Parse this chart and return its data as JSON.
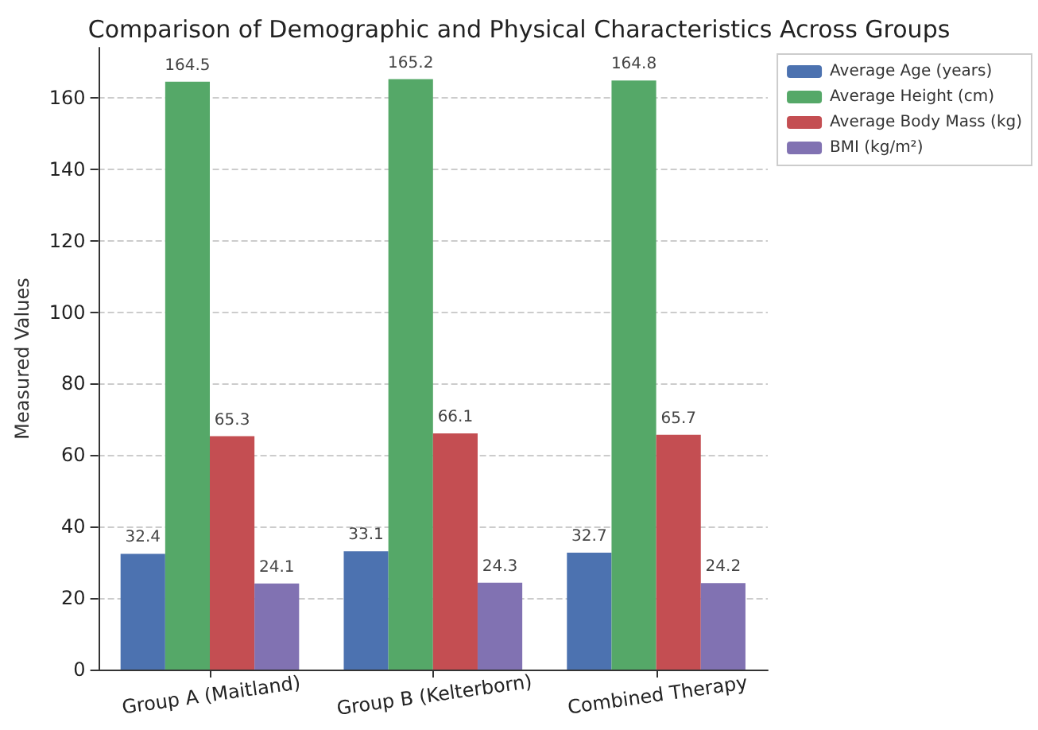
{
  "chart_data": {
    "type": "bar",
    "title": "Comparison of Demographic and Physical Characteristics Across Groups",
    "ylabel": "Measured Values",
    "categories": [
      "Group A (Maitland)",
      "Group B (Kelterborn)",
      "Combined Therapy"
    ],
    "series": [
      {
        "name": "Average Age (years)",
        "color": "#4c72b0",
        "values": [
          32.4,
          33.1,
          32.7
        ]
      },
      {
        "name": "Average Height (cm)",
        "color": "#55a868",
        "values": [
          164.5,
          165.2,
          164.8
        ]
      },
      {
        "name": "Average Body Mass (kg)",
        "color": "#c44e52",
        "values": [
          65.3,
          66.1,
          65.7
        ]
      },
      {
        "name": "BMI (kg/m²)",
        "color": "#8172b2",
        "values": [
          24.1,
          24.3,
          24.2
        ]
      }
    ],
    "ylim": [
      0,
      174
    ],
    "yticks": [
      0,
      20,
      40,
      60,
      80,
      100,
      120,
      140,
      160
    ],
    "grid": "y",
    "legend": "top right",
    "data_labels": true
  }
}
